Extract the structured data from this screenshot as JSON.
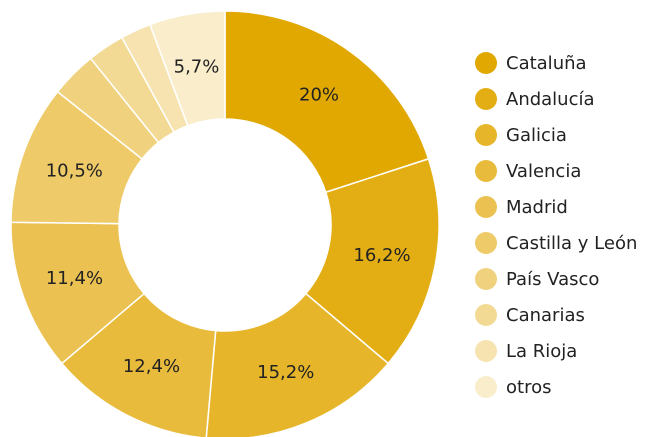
{
  "chart_data": {
    "type": "donut",
    "categories": [
      "Cataluña",
      "Andalucía",
      "Galicia",
      "Valencia",
      "Madrid",
      "Castilla y León",
      "País Vasco",
      "Canarias",
      "La Rioja",
      "otros"
    ],
    "values": [
      20,
      16.2,
      15.2,
      12.4,
      11.4,
      10.5,
      3.5,
      2.8,
      2.3,
      5.7
    ],
    "value_labels": [
      "20%",
      "16,2%",
      "15,2%",
      "12,4%",
      "11,4%",
      "10,5%",
      null,
      null,
      null,
      "5,7%"
    ],
    "colors": [
      "#e0a800",
      "#e3ae14",
      "#e6b52a",
      "#e8bb3c",
      "#ebc252",
      "#eeca68",
      "#f0d27e",
      "#f3da94",
      "#f6e3b0",
      "#f9edcc"
    ],
    "legend": "right"
  }
}
